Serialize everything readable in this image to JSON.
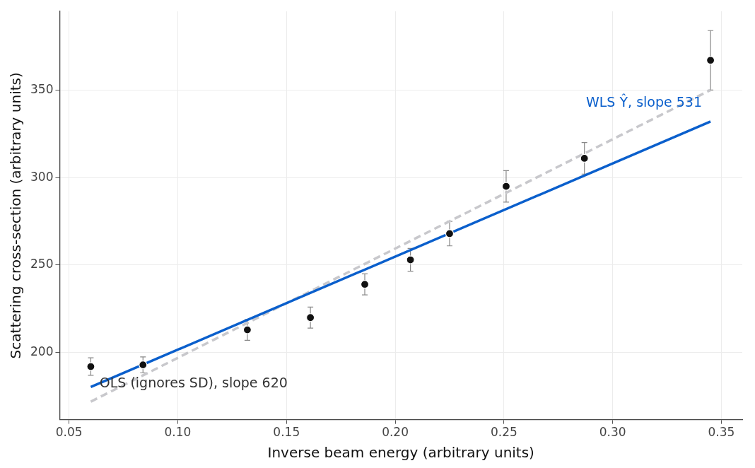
{
  "chart_data": {
    "type": "scatter",
    "xlabel": "Inverse beam energy (arbitrary units)",
    "ylabel": "Scattering cross-section (arbitrary units)",
    "xlim": [
      0.0457,
      0.3596
    ],
    "ylim": [
      161.7,
      395
    ],
    "xticks": [
      {
        "value": 0.05,
        "label": "0.05"
      },
      {
        "value": 0.1,
        "label": "0.10"
      },
      {
        "value": 0.15,
        "label": "0.15"
      },
      {
        "value": 0.2,
        "label": "0.20"
      },
      {
        "value": 0.25,
        "label": "0.25"
      },
      {
        "value": 0.3,
        "label": "0.30"
      },
      {
        "value": 0.35,
        "label": "0.35"
      }
    ],
    "yticks": [
      200,
      250,
      300,
      350
    ],
    "grid": true,
    "legend": false,
    "series": [
      {
        "type": "scatter",
        "color": "#111111",
        "marker": "circle",
        "x": [
          0.06,
          0.084,
          0.132,
          0.161,
          0.186,
          0.207,
          0.225,
          0.251,
          0.287,
          0.345
        ],
        "values": [
          192,
          193,
          213,
          220,
          239,
          253,
          268,
          295,
          311,
          367
        ],
        "errors": [
          5,
          4.5,
          6,
          6,
          6,
          6.5,
          7,
          9,
          9,
          17
        ]
      },
      {
        "type": "line",
        "color": "#0a5fcc",
        "marker": "none",
        "line_style": "solid",
        "x": [
          0.06,
          0.345
        ],
        "values": [
          180.4,
          332
        ]
      },
      {
        "type": "line",
        "color": "#c8c8cc",
        "marker": "none",
        "line_style": "dashed",
        "x": [
          0.06,
          0.345
        ],
        "values": [
          172,
          350
        ]
      }
    ],
    "annotations": [
      "WLS Ŷ, slope 531",
      {
        "text": "OLS (ignores SD), slope 620",
        "x": 0.064,
        "y": 182
      }
    ]
  }
}
